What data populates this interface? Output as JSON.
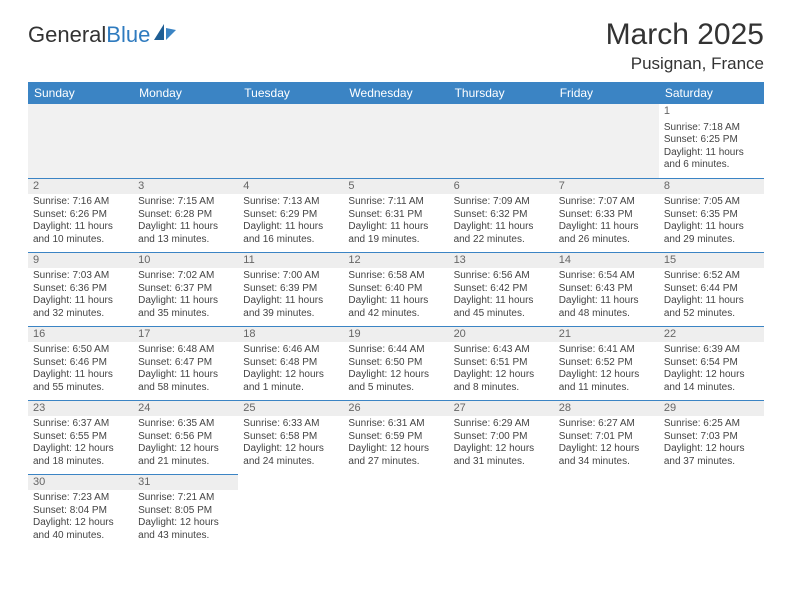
{
  "logo": {
    "general": "General",
    "blue": "Blue"
  },
  "title": "March 2025",
  "location": "Pusignan, France",
  "colors": {
    "header_bg": "#3b84c4",
    "header_text": "#ffffff",
    "border": "#3b84c4",
    "daynum_bg": "#eeeeee",
    "empty_bg": "#f1f1f1",
    "text": "#444444",
    "accent": "#2f7bbf"
  },
  "weekdays": [
    "Sunday",
    "Monday",
    "Tuesday",
    "Wednesday",
    "Thursday",
    "Friday",
    "Saturday"
  ],
  "weeks": [
    [
      null,
      null,
      null,
      null,
      null,
      null,
      {
        "n": "1",
        "sr": "Sunrise: 7:18 AM",
        "ss": "Sunset: 6:25 PM",
        "dl": "Daylight: 11 hours and 6 minutes."
      }
    ],
    [
      {
        "n": "2",
        "sr": "Sunrise: 7:16 AM",
        "ss": "Sunset: 6:26 PM",
        "dl": "Daylight: 11 hours and 10 minutes."
      },
      {
        "n": "3",
        "sr": "Sunrise: 7:15 AM",
        "ss": "Sunset: 6:28 PM",
        "dl": "Daylight: 11 hours and 13 minutes."
      },
      {
        "n": "4",
        "sr": "Sunrise: 7:13 AM",
        "ss": "Sunset: 6:29 PM",
        "dl": "Daylight: 11 hours and 16 minutes."
      },
      {
        "n": "5",
        "sr": "Sunrise: 7:11 AM",
        "ss": "Sunset: 6:31 PM",
        "dl": "Daylight: 11 hours and 19 minutes."
      },
      {
        "n": "6",
        "sr": "Sunrise: 7:09 AM",
        "ss": "Sunset: 6:32 PM",
        "dl": "Daylight: 11 hours and 22 minutes."
      },
      {
        "n": "7",
        "sr": "Sunrise: 7:07 AM",
        "ss": "Sunset: 6:33 PM",
        "dl": "Daylight: 11 hours and 26 minutes."
      },
      {
        "n": "8",
        "sr": "Sunrise: 7:05 AM",
        "ss": "Sunset: 6:35 PM",
        "dl": "Daylight: 11 hours and 29 minutes."
      }
    ],
    [
      {
        "n": "9",
        "sr": "Sunrise: 7:03 AM",
        "ss": "Sunset: 6:36 PM",
        "dl": "Daylight: 11 hours and 32 minutes."
      },
      {
        "n": "10",
        "sr": "Sunrise: 7:02 AM",
        "ss": "Sunset: 6:37 PM",
        "dl": "Daylight: 11 hours and 35 minutes."
      },
      {
        "n": "11",
        "sr": "Sunrise: 7:00 AM",
        "ss": "Sunset: 6:39 PM",
        "dl": "Daylight: 11 hours and 39 minutes."
      },
      {
        "n": "12",
        "sr": "Sunrise: 6:58 AM",
        "ss": "Sunset: 6:40 PM",
        "dl": "Daylight: 11 hours and 42 minutes."
      },
      {
        "n": "13",
        "sr": "Sunrise: 6:56 AM",
        "ss": "Sunset: 6:42 PM",
        "dl": "Daylight: 11 hours and 45 minutes."
      },
      {
        "n": "14",
        "sr": "Sunrise: 6:54 AM",
        "ss": "Sunset: 6:43 PM",
        "dl": "Daylight: 11 hours and 48 minutes."
      },
      {
        "n": "15",
        "sr": "Sunrise: 6:52 AM",
        "ss": "Sunset: 6:44 PM",
        "dl": "Daylight: 11 hours and 52 minutes."
      }
    ],
    [
      {
        "n": "16",
        "sr": "Sunrise: 6:50 AM",
        "ss": "Sunset: 6:46 PM",
        "dl": "Daylight: 11 hours and 55 minutes."
      },
      {
        "n": "17",
        "sr": "Sunrise: 6:48 AM",
        "ss": "Sunset: 6:47 PM",
        "dl": "Daylight: 11 hours and 58 minutes."
      },
      {
        "n": "18",
        "sr": "Sunrise: 6:46 AM",
        "ss": "Sunset: 6:48 PM",
        "dl": "Daylight: 12 hours and 1 minute."
      },
      {
        "n": "19",
        "sr": "Sunrise: 6:44 AM",
        "ss": "Sunset: 6:50 PM",
        "dl": "Daylight: 12 hours and 5 minutes."
      },
      {
        "n": "20",
        "sr": "Sunrise: 6:43 AM",
        "ss": "Sunset: 6:51 PM",
        "dl": "Daylight: 12 hours and 8 minutes."
      },
      {
        "n": "21",
        "sr": "Sunrise: 6:41 AM",
        "ss": "Sunset: 6:52 PM",
        "dl": "Daylight: 12 hours and 11 minutes."
      },
      {
        "n": "22",
        "sr": "Sunrise: 6:39 AM",
        "ss": "Sunset: 6:54 PM",
        "dl": "Daylight: 12 hours and 14 minutes."
      }
    ],
    [
      {
        "n": "23",
        "sr": "Sunrise: 6:37 AM",
        "ss": "Sunset: 6:55 PM",
        "dl": "Daylight: 12 hours and 18 minutes."
      },
      {
        "n": "24",
        "sr": "Sunrise: 6:35 AM",
        "ss": "Sunset: 6:56 PM",
        "dl": "Daylight: 12 hours and 21 minutes."
      },
      {
        "n": "25",
        "sr": "Sunrise: 6:33 AM",
        "ss": "Sunset: 6:58 PM",
        "dl": "Daylight: 12 hours and 24 minutes."
      },
      {
        "n": "26",
        "sr": "Sunrise: 6:31 AM",
        "ss": "Sunset: 6:59 PM",
        "dl": "Daylight: 12 hours and 27 minutes."
      },
      {
        "n": "27",
        "sr": "Sunrise: 6:29 AM",
        "ss": "Sunset: 7:00 PM",
        "dl": "Daylight: 12 hours and 31 minutes."
      },
      {
        "n": "28",
        "sr": "Sunrise: 6:27 AM",
        "ss": "Sunset: 7:01 PM",
        "dl": "Daylight: 12 hours and 34 minutes."
      },
      {
        "n": "29",
        "sr": "Sunrise: 6:25 AM",
        "ss": "Sunset: 7:03 PM",
        "dl": "Daylight: 12 hours and 37 minutes."
      }
    ],
    [
      {
        "n": "30",
        "sr": "Sunrise: 7:23 AM",
        "ss": "Sunset: 8:04 PM",
        "dl": "Daylight: 12 hours and 40 minutes."
      },
      {
        "n": "31",
        "sr": "Sunrise: 7:21 AM",
        "ss": "Sunset: 8:05 PM",
        "dl": "Daylight: 12 hours and 43 minutes."
      },
      null,
      null,
      null,
      null,
      null
    ]
  ]
}
